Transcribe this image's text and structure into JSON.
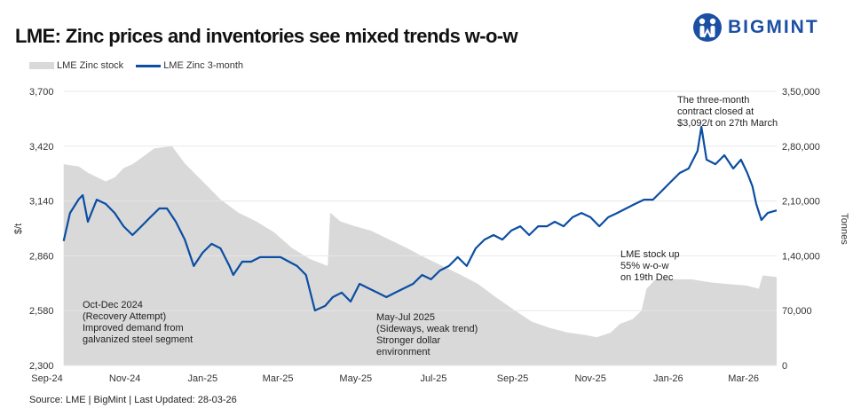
{
  "title": "LME: Zinc prices and inventories see mixed trends w-o-w",
  "logo": {
    "text": "BIGMINT",
    "color": "#1b4fa3"
  },
  "source": "Source: LME | BigMint | Last Updated: 28-03-26",
  "annotations": {
    "recovery": [
      "Oct-Dec 2024",
      "(Recovery Attempt)",
      "Improved demand from",
      "galvanized steel segment"
    ],
    "sideways": [
      "May-Jul 2025",
      "(Sideways, weak trend)",
      "Stronger dollar",
      "environment"
    ],
    "close": [
      "The three-month",
      "contract closed at",
      "$3,092/t on 27th March"
    ],
    "stock": [
      "LME stock up",
      "55% w-o-w",
      "on 19th Dec"
    ]
  },
  "chart_data": {
    "type": "line+area",
    "title": "LME: Zinc prices and inventories see mixed trends w-o-w",
    "ylabel": "$/t",
    "y2label": "Tonnes",
    "ylim": [
      2300,
      3700
    ],
    "y2lim": [
      0,
      350000
    ],
    "xlim": [
      "2024-09-01",
      "2026-03-27"
    ],
    "yticks": [
      "2,300",
      "2,580",
      "2,860",
      "3,140",
      "3,420",
      "3,700"
    ],
    "y2ticks": [
      "0",
      "70,000",
      "1,40,000",
      "2,10,000",
      "2,80,000",
      "3,50,000"
    ],
    "xticks": [
      {
        "label": "Sep-24",
        "date": "2024-09-01"
      },
      {
        "label": "Nov-24",
        "date": "2024-11-01"
      },
      {
        "label": "Jan-25",
        "date": "2025-01-01"
      },
      {
        "label": "Mar-25",
        "date": "2025-03-01"
      },
      {
        "label": "May-25",
        "date": "2025-05-01"
      },
      {
        "label": "Jul-25",
        "date": "2025-07-01"
      },
      {
        "label": "Sep-25",
        "date": "2025-09-01"
      },
      {
        "label": "Nov-25",
        "date": "2025-11-01"
      },
      {
        "label": "Jan-26",
        "date": "2026-01-01"
      },
      {
        "label": "Mar-26",
        "date": "2026-03-01"
      }
    ],
    "grid": true,
    "legend_position": "top-left",
    "series": [
      {
        "name": "LME Zinc stock",
        "type": "area",
        "axis": "right",
        "color": "#d9d9d9",
        "points": [
          [
            "2024-09-14",
            257000
          ],
          [
            "2024-09-26",
            254000
          ],
          [
            "2024-10-03",
            246000
          ],
          [
            "2024-10-17",
            235000
          ],
          [
            "2024-10-24",
            240000
          ],
          [
            "2024-10-31",
            252000
          ],
          [
            "2024-11-07",
            257000
          ],
          [
            "2024-11-14",
            265000
          ],
          [
            "2024-11-24",
            277000
          ],
          [
            "2024-12-08",
            280000
          ],
          [
            "2024-12-18",
            258000
          ],
          [
            "2025-01-01",
            235000
          ],
          [
            "2025-01-15",
            212000
          ],
          [
            "2025-01-29",
            195000
          ],
          [
            "2025-02-12",
            184000
          ],
          [
            "2025-02-26",
            170000
          ],
          [
            "2025-03-12",
            150000
          ],
          [
            "2025-03-26",
            136000
          ],
          [
            "2025-04-09",
            127000
          ],
          [
            "2025-04-11",
            195000
          ],
          [
            "2025-04-19",
            184000
          ],
          [
            "2025-04-30",
            178000
          ],
          [
            "2025-05-13",
            172000
          ],
          [
            "2025-05-27",
            161000
          ],
          [
            "2025-06-10",
            150000
          ],
          [
            "2025-06-24",
            138000
          ],
          [
            "2025-07-08",
            127000
          ],
          [
            "2025-07-22",
            116000
          ],
          [
            "2025-08-05",
            104000
          ],
          [
            "2025-08-19",
            87000
          ],
          [
            "2025-09-03",
            70000
          ],
          [
            "2025-09-16",
            56000
          ],
          [
            "2025-09-30",
            48000
          ],
          [
            "2025-10-14",
            42000
          ],
          [
            "2025-10-28",
            39000
          ],
          [
            "2025-11-06",
            36000
          ],
          [
            "2025-11-17",
            42000
          ],
          [
            "2025-11-24",
            53000
          ],
          [
            "2025-12-04",
            59000
          ],
          [
            "2025-12-11",
            70000
          ],
          [
            "2025-12-15",
            98000
          ],
          [
            "2025-12-22",
            110000
          ],
          [
            "2026-01-05",
            110000
          ],
          [
            "2026-01-19",
            110000
          ],
          [
            "2026-02-03",
            106000
          ],
          [
            "2026-02-17",
            104000
          ],
          [
            "2026-03-03",
            102000
          ],
          [
            "2026-03-13",
            98000
          ],
          [
            "2026-03-16",
            115000
          ],
          [
            "2026-03-27",
            113000
          ]
        ]
      },
      {
        "name": "LME Zinc 3-month",
        "type": "line",
        "axis": "left",
        "color": "#0b4ea2",
        "points": [
          [
            "2024-09-14",
            2935
          ],
          [
            "2024-09-19",
            3079
          ],
          [
            "2024-09-26",
            3150
          ],
          [
            "2024-09-29",
            3170
          ],
          [
            "2024-10-03",
            3034
          ],
          [
            "2024-10-10",
            3147
          ],
          [
            "2024-10-17",
            3125
          ],
          [
            "2024-10-24",
            3079
          ],
          [
            "2024-10-31",
            3011
          ],
          [
            "2024-11-07",
            2966
          ],
          [
            "2024-11-14",
            3011
          ],
          [
            "2024-11-21",
            3057
          ],
          [
            "2024-11-28",
            3102
          ],
          [
            "2024-12-04",
            3102
          ],
          [
            "2024-12-11",
            3034
          ],
          [
            "2024-12-18",
            2943
          ],
          [
            "2024-12-25",
            2808
          ],
          [
            "2025-01-01",
            2876
          ],
          [
            "2025-01-08",
            2921
          ],
          [
            "2025-01-15",
            2898
          ],
          [
            "2025-01-22",
            2808
          ],
          [
            "2025-01-25",
            2762
          ],
          [
            "2025-02-01",
            2830
          ],
          [
            "2025-02-08",
            2830
          ],
          [
            "2025-02-15",
            2853
          ],
          [
            "2025-02-22",
            2853
          ],
          [
            "2025-03-03",
            2853
          ],
          [
            "2025-03-16",
            2808
          ],
          [
            "2025-03-23",
            2762
          ],
          [
            "2025-03-30",
            2581
          ],
          [
            "2025-04-07",
            2604
          ],
          [
            "2025-04-13",
            2649
          ],
          [
            "2025-04-20",
            2672
          ],
          [
            "2025-04-27",
            2626
          ],
          [
            "2025-05-04",
            2717
          ],
          [
            "2025-05-11",
            2694
          ],
          [
            "2025-05-18",
            2672
          ],
          [
            "2025-05-25",
            2649
          ],
          [
            "2025-06-01",
            2672
          ],
          [
            "2025-06-15",
            2717
          ],
          [
            "2025-06-22",
            2762
          ],
          [
            "2025-06-29",
            2740
          ],
          [
            "2025-07-06",
            2785
          ],
          [
            "2025-07-13",
            2808
          ],
          [
            "2025-07-20",
            2853
          ],
          [
            "2025-07-27",
            2808
          ],
          [
            "2025-08-03",
            2898
          ],
          [
            "2025-08-10",
            2943
          ],
          [
            "2025-08-17",
            2966
          ],
          [
            "2025-08-24",
            2943
          ],
          [
            "2025-08-31",
            2989
          ],
          [
            "2025-09-07",
            3011
          ],
          [
            "2025-09-14",
            2966
          ],
          [
            "2025-09-21",
            3011
          ],
          [
            "2025-09-28",
            3011
          ],
          [
            "2025-10-04",
            3034
          ],
          [
            "2025-10-11",
            3011
          ],
          [
            "2025-10-18",
            3057
          ],
          [
            "2025-10-25",
            3079
          ],
          [
            "2025-11-01",
            3057
          ],
          [
            "2025-11-08",
            3011
          ],
          [
            "2025-11-15",
            3057
          ],
          [
            "2025-11-22",
            3079
          ],
          [
            "2025-11-29",
            3102
          ],
          [
            "2025-12-06",
            3125
          ],
          [
            "2025-12-13",
            3147
          ],
          [
            "2025-12-20",
            3147
          ],
          [
            "2025-12-27",
            3192
          ],
          [
            "2026-01-03",
            3238
          ],
          [
            "2026-01-10",
            3283
          ],
          [
            "2026-01-17",
            3306
          ],
          [
            "2026-01-24",
            3396
          ],
          [
            "2026-01-27",
            3519
          ],
          [
            "2026-01-31",
            3351
          ],
          [
            "2026-02-07",
            3328
          ],
          [
            "2026-02-14",
            3374
          ],
          [
            "2026-02-21",
            3306
          ],
          [
            "2026-02-27",
            3351
          ],
          [
            "2026-03-04",
            3283
          ],
          [
            "2026-03-08",
            3215
          ],
          [
            "2026-03-11",
            3125
          ],
          [
            "2026-03-15",
            3043
          ],
          [
            "2026-03-20",
            3079
          ],
          [
            "2026-03-27",
            3092
          ]
        ]
      }
    ]
  }
}
